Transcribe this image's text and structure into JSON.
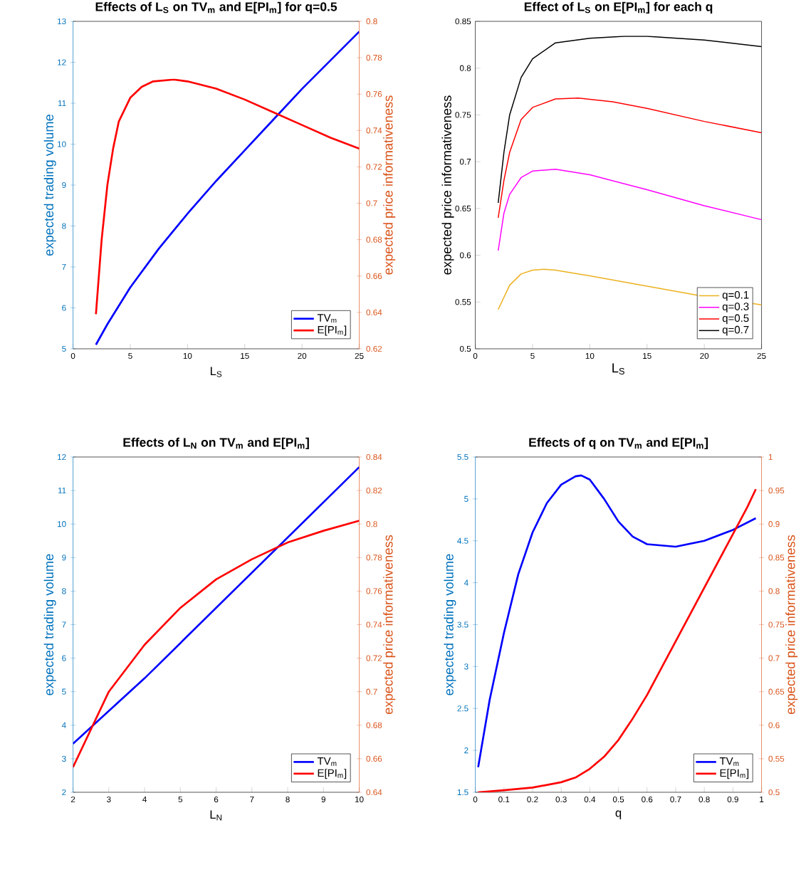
{
  "chart_data": [
    {
      "type": "line",
      "title": "Effects of L$_{S}$ on TV$_{m}$ and E[PI$_{m}$] for q=0.5",
      "xlabel": "L$_{S}$",
      "ylabel": "expected trading volume",
      "y2label": "expected price informativeness",
      "xlim": [
        0,
        25
      ],
      "xticks": [
        0,
        5,
        10,
        15,
        20,
        25
      ],
      "ylim": [
        5,
        13
      ],
      "yticks": [
        5,
        6,
        7,
        8,
        9,
        10,
        11,
        12,
        13
      ],
      "y2lim": [
        0.62,
        0.8
      ],
      "y2ticks": [
        0.62,
        0.64,
        0.66,
        0.68,
        0.7,
        0.72,
        0.74,
        0.76,
        0.78,
        0.8
      ],
      "legend": "bottom right",
      "series": [
        {
          "name": "TV$_{m}$",
          "color": "#0000ff",
          "x": [
            2,
            3,
            5,
            7.5,
            10,
            12.5,
            15,
            17.5,
            20,
            22.5,
            25
          ],
          "values": [
            5.1,
            5.6,
            6.5,
            7.45,
            8.3,
            9.1,
            9.85,
            10.6,
            11.35,
            12.05,
            12.75
          ]
        },
        {
          "name": "E[PI$_{m}$]",
          "color": "#ff0000",
          "axis": "y2",
          "x": [
            2,
            2.5,
            3,
            3.5,
            4,
            5,
            6,
            7,
            8.8,
            10,
            12.5,
            15,
            17.5,
            20,
            22.5,
            25
          ],
          "values": [
            0.639,
            0.68,
            0.71,
            0.73,
            0.745,
            0.758,
            0.764,
            0.767,
            0.768,
            0.767,
            0.763,
            0.757,
            0.75,
            0.743,
            0.736,
            0.73
          ]
        }
      ]
    },
    {
      "type": "line",
      "title": "Effect of L$_{S}$ on E[PI$_{m}$] for each q",
      "xlabel": "L$_{S}$",
      "ylabel": "expected price informativeness",
      "xlim": [
        0,
        25
      ],
      "xticks": [
        0,
        5,
        10,
        15,
        20,
        25
      ],
      "ylim": [
        0.5,
        0.85
      ],
      "yticks": [
        0.5,
        0.55,
        0.6,
        0.65,
        0.7,
        0.75,
        0.8,
        0.85
      ],
      "legend": "bottom right",
      "series": [
        {
          "name": "q=0.1",
          "color": "#edb120",
          "x": [
            2,
            3,
            4,
            5,
            6,
            7,
            10,
            15,
            20,
            25
          ],
          "values": [
            0.542,
            0.568,
            0.58,
            0.584,
            0.585,
            0.584,
            0.578,
            0.567,
            0.556,
            0.547
          ]
        },
        {
          "name": "q=0.3",
          "color": "#ff00ff",
          "x": [
            2,
            2.5,
            3,
            4,
            5,
            7,
            10,
            15,
            20,
            25
          ],
          "values": [
            0.605,
            0.645,
            0.665,
            0.683,
            0.69,
            0.692,
            0.686,
            0.67,
            0.653,
            0.638
          ]
        },
        {
          "name": "q=0.5",
          "color": "#ff0000",
          "x": [
            2,
            2.5,
            3,
            4,
            5,
            7,
            9,
            12,
            15,
            20,
            25
          ],
          "values": [
            0.64,
            0.68,
            0.71,
            0.745,
            0.758,
            0.767,
            0.768,
            0.764,
            0.757,
            0.743,
            0.731
          ]
        },
        {
          "name": "q=0.7",
          "color": "#000000",
          "x": [
            2,
            2.5,
            3,
            4,
            5,
            7,
            10,
            13,
            15,
            20,
            25
          ],
          "values": [
            0.656,
            0.71,
            0.75,
            0.79,
            0.81,
            0.827,
            0.832,
            0.834,
            0.834,
            0.83,
            0.823
          ]
        }
      ]
    },
    {
      "type": "line",
      "title": "Effects of L$_{N}$ on TV$_{m}$ and E[PI$_{m}$]",
      "xlabel": "L$_{N}$",
      "ylabel": "expected trading volume",
      "y2label": "expected price informativeness",
      "xlim": [
        2,
        10
      ],
      "xticks": [
        2,
        3,
        4,
        5,
        6,
        7,
        8,
        9,
        10
      ],
      "ylim": [
        2,
        12
      ],
      "yticks": [
        2,
        3,
        4,
        5,
        6,
        7,
        8,
        9,
        10,
        11,
        12
      ],
      "y2lim": [
        0.64,
        0.84
      ],
      "y2ticks": [
        0.64,
        0.66,
        0.68,
        0.7,
        0.72,
        0.74,
        0.76,
        0.78,
        0.8,
        0.82,
        0.84
      ],
      "legend": "bottom right",
      "series": [
        {
          "name": "TV$_{m}$",
          "color": "#0000ff",
          "x": [
            2,
            4,
            6,
            8,
            10
          ],
          "values": [
            3.45,
            5.4,
            7.5,
            9.6,
            11.7
          ]
        },
        {
          "name": "E[PI$_{m}$]",
          "color": "#ff0000",
          "axis": "y2",
          "x": [
            2,
            3,
            4,
            5,
            6,
            7,
            8,
            9,
            10
          ],
          "values": [
            0.655,
            0.7,
            0.728,
            0.75,
            0.767,
            0.779,
            0.789,
            0.796,
            0.802
          ]
        }
      ]
    },
    {
      "type": "line",
      "title": "Effects of q on TV$_{m}$ and E[PI$_{m}$]",
      "xlabel": "q",
      "ylabel": "expected trading volume",
      "y2label": "expected price informativeness",
      "xlim": [
        0,
        1
      ],
      "xticks": [
        0,
        0.1,
        0.2,
        0.3,
        0.4,
        0.5,
        0.6,
        0.7,
        0.8,
        0.9,
        1
      ],
      "ylim": [
        1.5,
        5.5
      ],
      "yticks": [
        1.5,
        2,
        2.5,
        3,
        3.5,
        4,
        4.5,
        5,
        5.5
      ],
      "y2lim": [
        0.5,
        1
      ],
      "y2ticks": [
        0.5,
        0.55,
        0.6,
        0.65,
        0.7,
        0.75,
        0.8,
        0.85,
        0.9,
        0.95,
        1
      ],
      "legend": "bottom right",
      "series": [
        {
          "name": "TV$_{m}$",
          "color": "#0000ff",
          "x": [
            0.01,
            0.05,
            0.1,
            0.15,
            0.2,
            0.25,
            0.3,
            0.35,
            0.37,
            0.4,
            0.45,
            0.5,
            0.55,
            0.6,
            0.7,
            0.8,
            0.9,
            0.98
          ],
          "values": [
            1.8,
            2.6,
            3.4,
            4.1,
            4.6,
            4.95,
            5.17,
            5.27,
            5.28,
            5.23,
            5.0,
            4.73,
            4.55,
            4.46,
            4.43,
            4.5,
            4.63,
            4.77
          ]
        },
        {
          "name": "E[PI$_{m}$]",
          "color": "#ff0000",
          "axis": "y2",
          "x": [
            0.01,
            0.1,
            0.2,
            0.3,
            0.35,
            0.4,
            0.45,
            0.5,
            0.55,
            0.6,
            0.65,
            0.7,
            0.75,
            0.8,
            0.85,
            0.9,
            0.95,
            0.98
          ],
          "values": [
            0.5,
            0.503,
            0.507,
            0.515,
            0.522,
            0.535,
            0.553,
            0.578,
            0.61,
            0.645,
            0.685,
            0.725,
            0.765,
            0.805,
            0.845,
            0.885,
            0.925,
            0.952
          ]
        }
      ]
    }
  ]
}
